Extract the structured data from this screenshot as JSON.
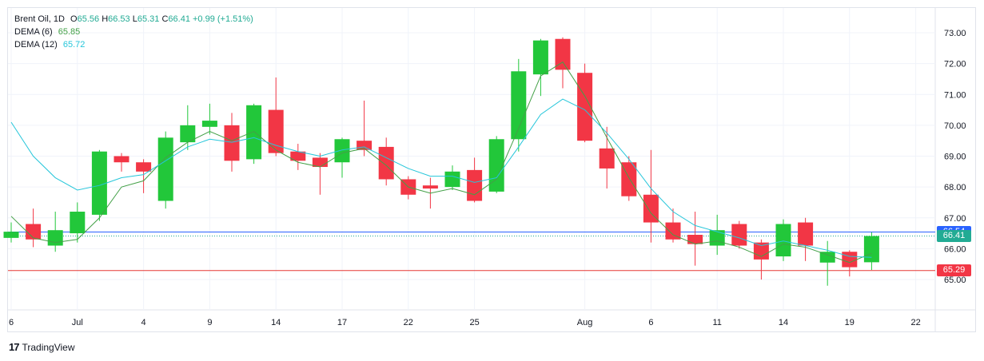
{
  "legend": {
    "symbol": "Brent Oil, 1D",
    "o_label": "O",
    "o_value": "65.56",
    "h_label": "H",
    "h_value": "66.53",
    "l_label": "L",
    "l_value": "65.31",
    "c_label": "C",
    "c_value": "66.41",
    "change": "+0.99 (+1.51%)",
    "dema6_label": "DEMA (6)",
    "dema6_value": "65.85",
    "dema12_label": "DEMA (12)",
    "dema12_value": "65.72"
  },
  "branding": {
    "logo_mark": "17",
    "logo_text": "TradingView"
  },
  "price_tags": {
    "high_line": "66.54",
    "last_price": "66.41",
    "low_line": "65.29"
  },
  "colors": {
    "up": "#22c73a",
    "down": "#f23645",
    "dema6": "#43a047",
    "dema12": "#26c6da",
    "high_line": "#2962ff",
    "low_line": "#e53935",
    "last_line": "#22ab94"
  },
  "chart_data": {
    "type": "candlestick",
    "y_ticks": [
      "65.00",
      "66.00",
      "67.00",
      "68.00",
      "69.00",
      "70.00",
      "71.00",
      "72.00",
      "73.00"
    ],
    "ylim": [
      64.5,
      73.35
    ],
    "x_ticks": [
      {
        "label": "6",
        "index": 0
      },
      {
        "label": "Jul",
        "index": 3
      },
      {
        "label": "4",
        "index": 6
      },
      {
        "label": "9",
        "index": 9
      },
      {
        "label": "14",
        "index": 12
      },
      {
        "label": "17",
        "index": 15
      },
      {
        "label": "22",
        "index": 18
      },
      {
        "label": "25",
        "index": 21
      },
      {
        "label": "Aug",
        "index": 26
      },
      {
        "label": "6",
        "index": 29
      },
      {
        "label": "11",
        "index": 32
      },
      {
        "label": "14",
        "index": 35
      },
      {
        "label": "19",
        "index": 38
      },
      {
        "label": "22",
        "index": 41
      }
    ],
    "candles": [
      {
        "o": 66.35,
        "h": 66.85,
        "l": 66.2,
        "c": 66.55
      },
      {
        "o": 66.8,
        "h": 67.3,
        "l": 66.05,
        "c": 66.3
      },
      {
        "o": 66.1,
        "h": 67.2,
        "l": 65.9,
        "c": 66.6
      },
      {
        "o": 66.5,
        "h": 67.5,
        "l": 66.2,
        "c": 67.2
      },
      {
        "o": 67.1,
        "h": 69.2,
        "l": 66.9,
        "c": 69.15
      },
      {
        "o": 69.0,
        "h": 69.1,
        "l": 68.5,
        "c": 68.8
      },
      {
        "o": 68.8,
        "h": 68.9,
        "l": 67.8,
        "c": 68.5
      },
      {
        "o": 67.55,
        "h": 69.8,
        "l": 67.3,
        "c": 69.6
      },
      {
        "o": 69.45,
        "h": 70.65,
        "l": 69.2,
        "c": 70.0
      },
      {
        "o": 69.95,
        "h": 70.7,
        "l": 69.7,
        "c": 70.15
      },
      {
        "o": 70.0,
        "h": 70.4,
        "l": 68.5,
        "c": 68.85
      },
      {
        "o": 68.9,
        "h": 70.7,
        "l": 68.75,
        "c": 70.65
      },
      {
        "o": 70.5,
        "h": 71.55,
        "l": 69.0,
        "c": 69.1
      },
      {
        "o": 69.15,
        "h": 69.4,
        "l": 68.55,
        "c": 68.85
      },
      {
        "o": 68.95,
        "h": 69.1,
        "l": 67.75,
        "c": 68.65
      },
      {
        "o": 68.8,
        "h": 69.6,
        "l": 68.3,
        "c": 69.55
      },
      {
        "o": 69.5,
        "h": 70.8,
        "l": 69.0,
        "c": 69.2
      },
      {
        "o": 69.3,
        "h": 69.6,
        "l": 68.05,
        "c": 68.25
      },
      {
        "o": 68.25,
        "h": 68.35,
        "l": 67.6,
        "c": 67.75
      },
      {
        "o": 68.05,
        "h": 68.3,
        "l": 67.3,
        "c": 67.95
      },
      {
        "o": 68.0,
        "h": 68.7,
        "l": 67.9,
        "c": 68.5
      },
      {
        "o": 68.55,
        "h": 68.95,
        "l": 67.5,
        "c": 67.55
      },
      {
        "o": 67.85,
        "h": 69.65,
        "l": 67.8,
        "c": 69.55
      },
      {
        "o": 69.55,
        "h": 72.15,
        "l": 69.15,
        "c": 71.75
      },
      {
        "o": 71.65,
        "h": 72.8,
        "l": 70.95,
        "c": 72.75
      },
      {
        "o": 72.8,
        "h": 72.85,
        "l": 71.2,
        "c": 71.8
      },
      {
        "o": 71.7,
        "h": 72.0,
        "l": 69.45,
        "c": 69.5
      },
      {
        "o": 69.25,
        "h": 69.95,
        "l": 67.95,
        "c": 68.6
      },
      {
        "o": 68.8,
        "h": 69.0,
        "l": 67.55,
        "c": 67.7
      },
      {
        "o": 67.75,
        "h": 69.2,
        "l": 66.2,
        "c": 66.85
      },
      {
        "o": 66.85,
        "h": 67.3,
        "l": 66.2,
        "c": 66.3
      },
      {
        "o": 66.45,
        "h": 67.2,
        "l": 65.45,
        "c": 66.15
      },
      {
        "o": 66.1,
        "h": 67.1,
        "l": 65.8,
        "c": 66.6
      },
      {
        "o": 66.8,
        "h": 66.9,
        "l": 66.0,
        "c": 66.1
      },
      {
        "o": 66.2,
        "h": 66.3,
        "l": 65.0,
        "c": 65.65
      },
      {
        "o": 65.75,
        "h": 66.95,
        "l": 65.6,
        "c": 66.8
      },
      {
        "o": 66.85,
        "h": 67.0,
        "l": 65.6,
        "c": 66.1
      },
      {
        "o": 65.55,
        "h": 66.25,
        "l": 64.8,
        "c": 65.9
      },
      {
        "o": 65.9,
        "h": 65.95,
        "l": 65.1,
        "c": 65.4
      },
      {
        "o": 65.56,
        "h": 66.53,
        "l": 65.31,
        "c": 66.41
      }
    ],
    "series": [
      {
        "name": "DEMA (6)",
        "values": [
          67.05,
          66.35,
          66.2,
          66.3,
          67.0,
          68.0,
          68.2,
          68.95,
          69.45,
          69.8,
          69.5,
          69.8,
          69.2,
          68.8,
          68.65,
          69.1,
          69.25,
          68.7,
          68.0,
          67.8,
          67.95,
          67.75,
          68.25,
          69.9,
          71.6,
          72.05,
          70.95,
          69.6,
          68.3,
          67.15,
          66.45,
          66.15,
          66.25,
          66.05,
          65.75,
          66.15,
          66.05,
          65.8,
          65.55,
          65.85
        ]
      },
      {
        "name": "DEMA (12)",
        "values": [
          70.1,
          69.0,
          68.3,
          67.9,
          68.05,
          68.3,
          68.4,
          68.85,
          69.3,
          69.55,
          69.45,
          69.6,
          69.35,
          69.15,
          69.0,
          69.2,
          69.3,
          68.95,
          68.6,
          68.35,
          68.35,
          68.15,
          68.3,
          69.3,
          70.35,
          70.85,
          70.5,
          69.75,
          68.9,
          67.95,
          67.2,
          66.75,
          66.55,
          66.35,
          66.1,
          66.25,
          66.1,
          65.95,
          65.75,
          65.72
        ]
      }
    ],
    "horizontal_lines": [
      66.54,
      65.29
    ],
    "last_price": 66.41
  }
}
